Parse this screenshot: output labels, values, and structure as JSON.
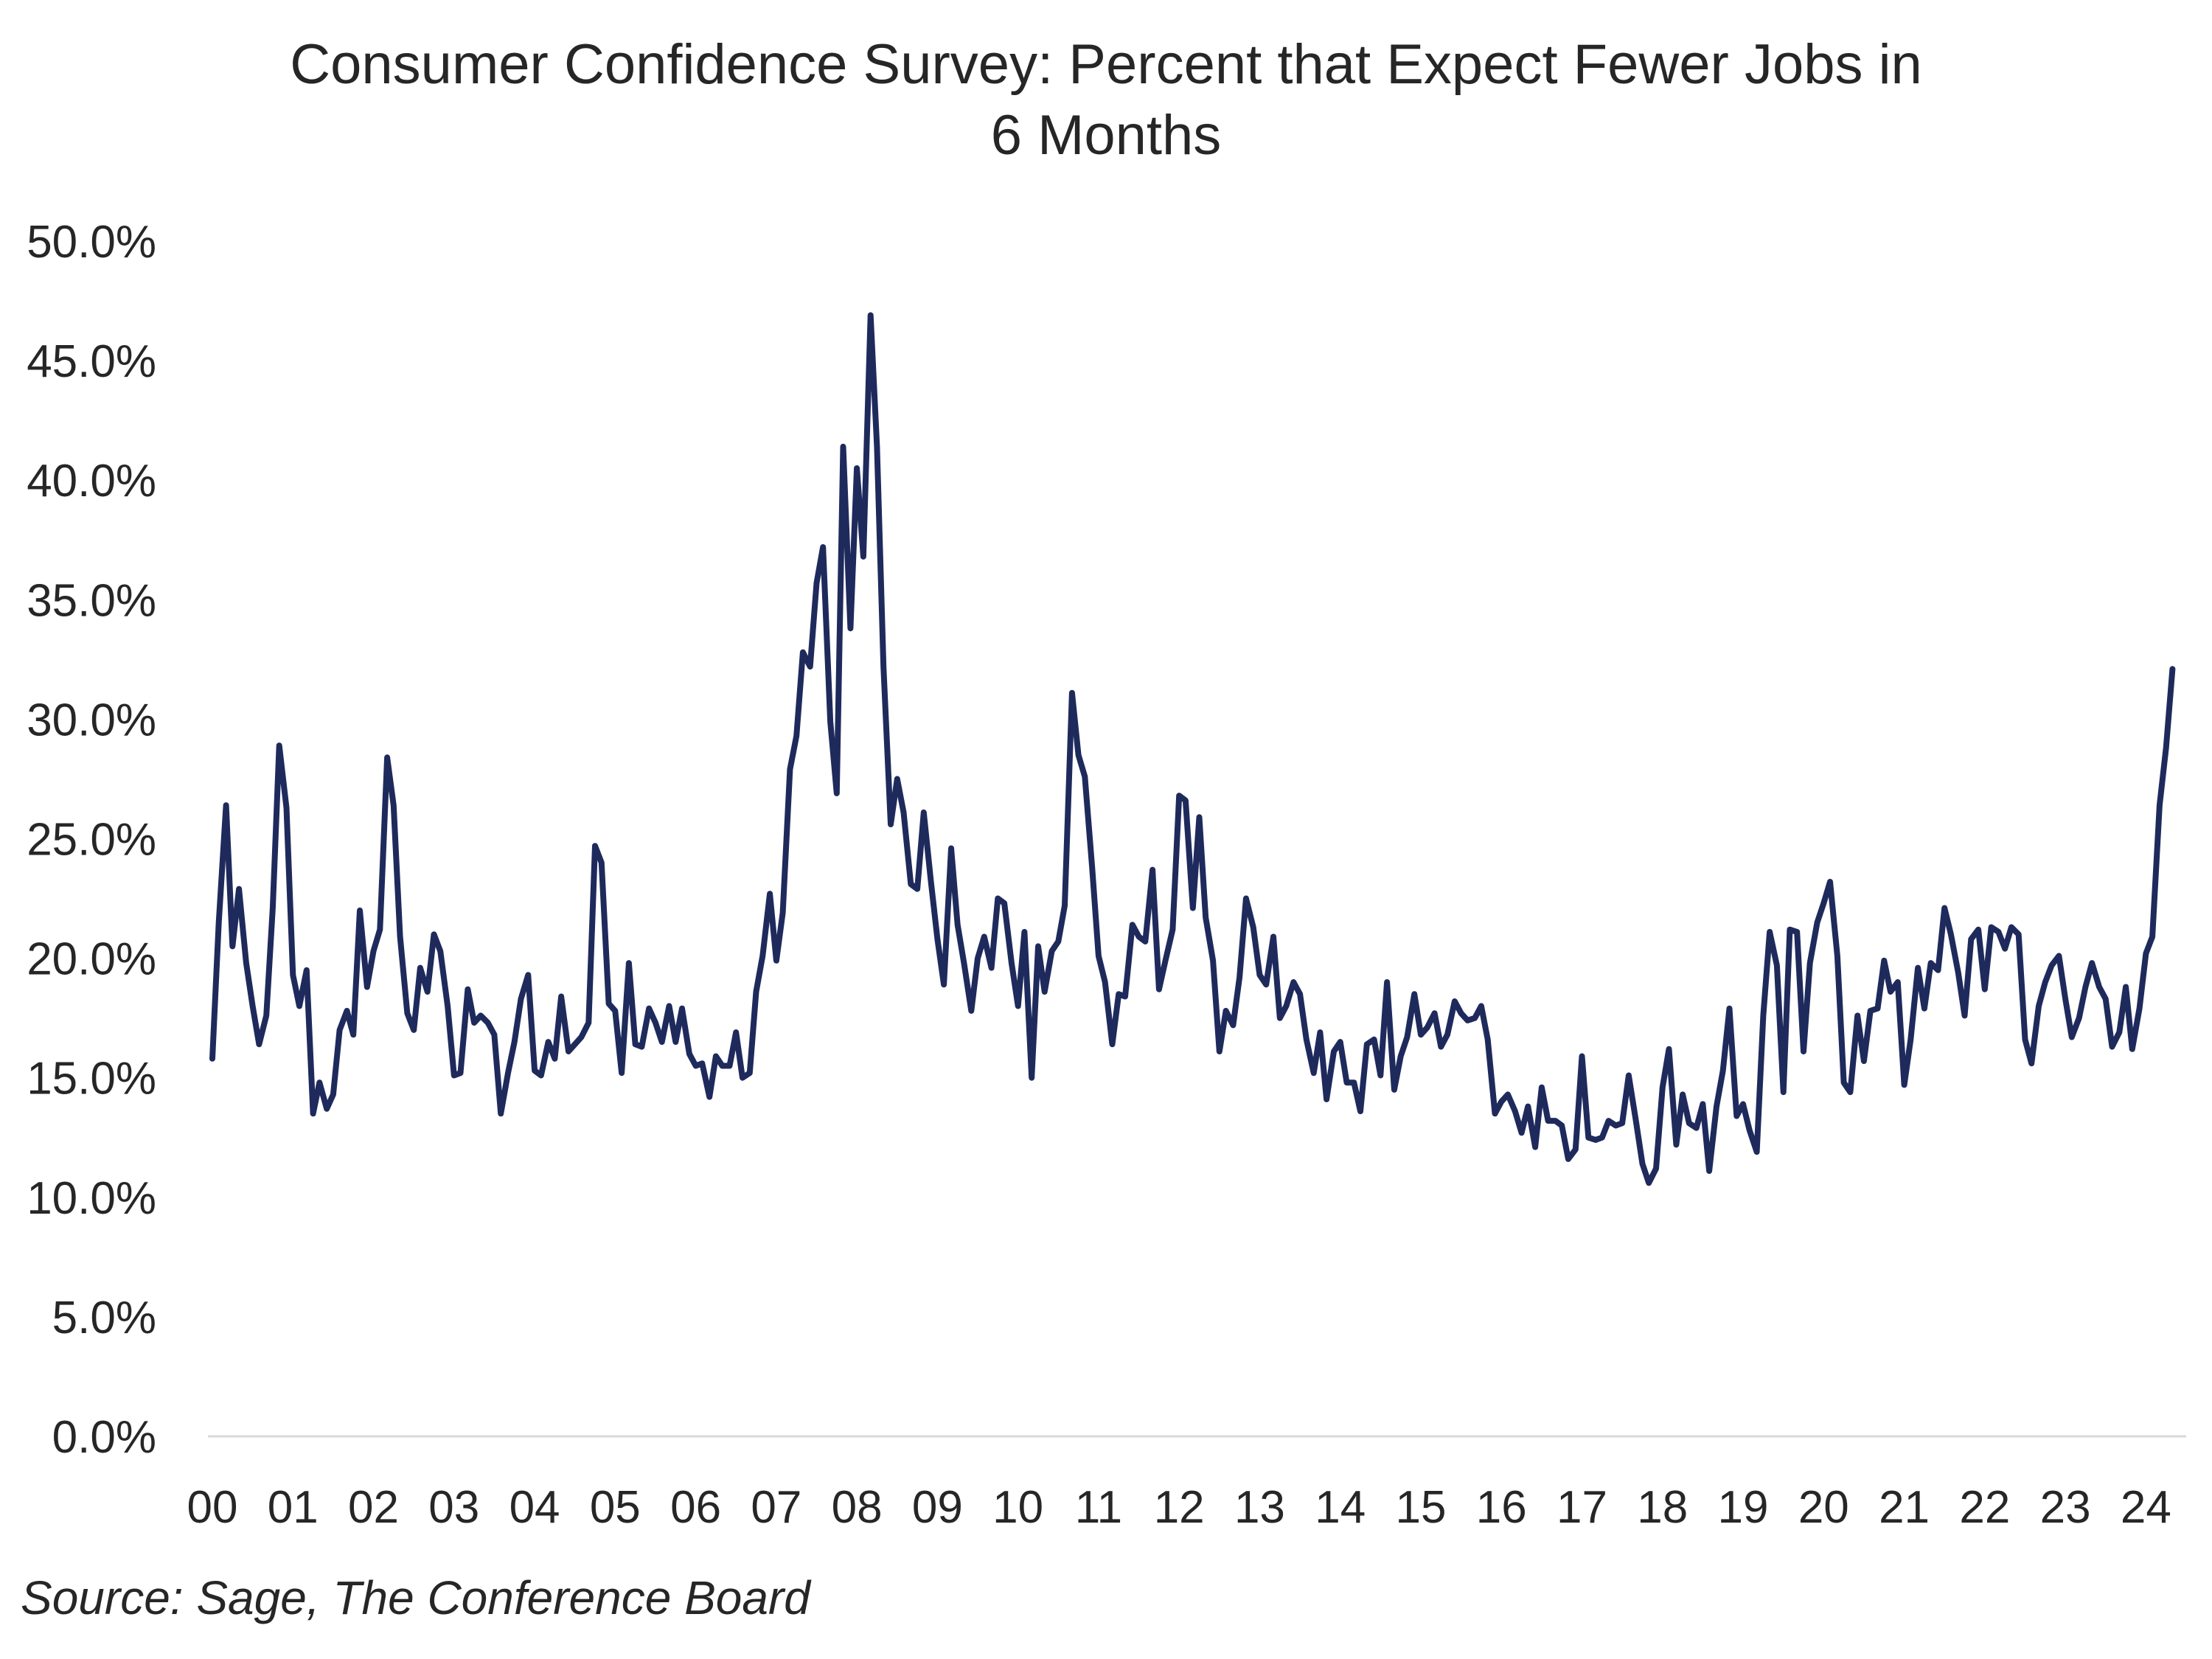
{
  "chart_data": {
    "type": "line",
    "title": "Consumer Confidence Survey: Percent that Expect Fewer Jobs in 6 Months",
    "title_lines": [
      "Consumer Confidence Survey: Percent that Expect Fewer Jobs in",
      "6 Months"
    ],
    "xlabel": "",
    "ylabel": "",
    "ylim": [
      0,
      50
    ],
    "xlim": [
      2000.0,
      2024.5
    ],
    "y_ticks": [
      0,
      5,
      10,
      15,
      20,
      25,
      30,
      35,
      40,
      45,
      50
    ],
    "y_tick_labels": [
      "0.0%",
      "5.0%",
      "10.0%",
      "15.0%",
      "20.0%",
      "25.0%",
      "30.0%",
      "35.0%",
      "40.0%",
      "45.0%",
      "50.0%"
    ],
    "x_ticks": [
      2000,
      2001,
      2002,
      2003,
      2004,
      2005,
      2006,
      2007,
      2008,
      2009,
      2010,
      2011,
      2012,
      2013,
      2014,
      2015,
      2016,
      2017,
      2018,
      2019,
      2020,
      2021,
      2022,
      2023,
      2024
    ],
    "x_tick_labels": [
      "00",
      "01",
      "02",
      "03",
      "04",
      "05",
      "06",
      "07",
      "08",
      "09",
      "10",
      "11",
      "12",
      "13",
      "14",
      "15",
      "16",
      "17",
      "18",
      "19",
      "20",
      "21",
      "22",
      "23",
      "24"
    ],
    "grid": false,
    "legend": "none",
    "line_color": "#1f2a5c",
    "series": [
      {
        "x": [
          2000.0,
          2000.08,
          2000.17,
          2000.25,
          2000.33,
          2000.42,
          2000.5,
          2000.58,
          2000.67,
          2000.75,
          2000.83,
          2000.92,
          2001.0,
          2001.08,
          2001.17,
          2001.25,
          2001.33,
          2001.42,
          2001.5,
          2001.58,
          2001.67,
          2001.75,
          2001.83,
          2001.92,
          2002.0,
          2002.08,
          2002.17,
          2002.25,
          2002.33,
          2002.42,
          2002.5,
          2002.58,
          2002.67,
          2002.75,
          2002.83,
          2002.92,
          2003.0,
          2003.08,
          2003.17,
          2003.25,
          2003.33,
          2003.42,
          2003.5,
          2003.58,
          2003.67,
          2003.75,
          2003.83,
          2003.92,
          2004.0,
          2004.08,
          2004.17,
          2004.25,
          2004.33,
          2004.42,
          2004.5,
          2004.58,
          2004.67,
          2004.75,
          2004.83,
          2004.92,
          2005.0,
          2005.08,
          2005.17,
          2005.25,
          2005.33,
          2005.42,
          2005.5,
          2005.58,
          2005.67,
          2005.75,
          2005.83,
          2005.92,
          2006.0,
          2006.08,
          2006.17,
          2006.25,
          2006.33,
          2006.42,
          2006.5,
          2006.58,
          2006.67,
          2006.75,
          2006.83,
          2006.92,
          2007.0,
          2007.08,
          2007.17,
          2007.25,
          2007.33,
          2007.42,
          2007.5,
          2007.58,
          2007.67,
          2007.75,
          2007.83,
          2007.92,
          2008.0,
          2008.08,
          2008.17,
          2008.25,
          2008.33,
          2008.42,
          2008.5,
          2008.58,
          2008.67,
          2008.75,
          2008.83,
          2008.92,
          2009.0,
          2009.08,
          2009.17,
          2009.25,
          2009.33,
          2009.42,
          2009.5,
          2009.58,
          2009.67,
          2009.75,
          2009.83,
          2009.92,
          2010.0,
          2010.08,
          2010.17,
          2010.25,
          2010.33,
          2010.42,
          2010.5,
          2010.58,
          2010.67,
          2010.75,
          2010.83,
          2010.92,
          2011.0,
          2011.08,
          2011.17,
          2011.25,
          2011.33,
          2011.42,
          2011.5,
          2011.58,
          2011.67,
          2011.75,
          2011.83,
          2011.92,
          2012.0,
          2012.08,
          2012.17,
          2012.25,
          2012.33,
          2012.42,
          2012.5,
          2012.58,
          2012.67,
          2012.75,
          2012.83,
          2012.92,
          2013.0,
          2013.08,
          2013.17,
          2013.25,
          2013.33,
          2013.42,
          2013.5,
          2013.58,
          2013.67,
          2013.75,
          2013.83,
          2013.92,
          2014.0,
          2014.08,
          2014.17,
          2014.25,
          2014.33,
          2014.42,
          2014.5,
          2014.58,
          2014.67,
          2014.75,
          2014.83,
          2014.92,
          2015.0,
          2015.08,
          2015.17,
          2015.25,
          2015.33,
          2015.42,
          2015.5,
          2015.58,
          2015.67,
          2015.75,
          2015.83,
          2015.92,
          2016.0,
          2016.08,
          2016.17,
          2016.25,
          2016.33,
          2016.42,
          2016.5,
          2016.58,
          2016.67,
          2016.75,
          2016.83,
          2016.92,
          2017.0,
          2017.08,
          2017.17,
          2017.25,
          2017.33,
          2017.42,
          2017.5,
          2017.58,
          2017.67,
          2017.75,
          2017.83,
          2017.92,
          2018.0,
          2018.08,
          2018.17,
          2018.25,
          2018.33,
          2018.42,
          2018.5,
          2018.58,
          2018.67,
          2018.75,
          2018.83,
          2018.92,
          2019.0,
          2019.08,
          2019.17,
          2019.25,
          2019.33,
          2019.42,
          2019.5,
          2019.58,
          2019.67,
          2019.75,
          2019.83,
          2019.92,
          2020.0,
          2020.08,
          2020.17,
          2020.25,
          2020.33,
          2020.42,
          2020.5,
          2020.58,
          2020.67,
          2020.75,
          2020.83,
          2020.92,
          2021.0,
          2021.08,
          2021.17,
          2021.25,
          2021.33,
          2021.42,
          2021.5,
          2021.58,
          2021.67,
          2021.75,
          2021.83,
          2021.92,
          2022.0,
          2022.08,
          2022.17,
          2022.25,
          2022.33,
          2022.42,
          2022.5,
          2022.58,
          2022.67,
          2022.75,
          2022.83,
          2022.92,
          2023.0,
          2023.08,
          2023.17,
          2023.25,
          2023.33,
          2023.42,
          2023.5,
          2023.58,
          2023.67,
          2023.75,
          2023.83,
          2023.92,
          2024.0,
          2024.08,
          2024.17,
          2024.25,
          2024.33
        ],
        "values": [
          15.8,
          21.5,
          26.4,
          20.5,
          22.9,
          19.8,
          18.0,
          16.4,
          17.6,
          22.1,
          28.9,
          26.3,
          19.3,
          18.0,
          19.5,
          13.5,
          14.8,
          13.7,
          14.3,
          17.0,
          17.8,
          16.8,
          22.0,
          18.8,
          20.3,
          21.2,
          28.4,
          26.4,
          20.9,
          17.7,
          17.0,
          19.6,
          18.6,
          21.0,
          20.3,
          18.0,
          15.1,
          15.2,
          18.7,
          17.3,
          17.6,
          17.3,
          16.8,
          13.5,
          15.2,
          16.5,
          18.3,
          19.3,
          15.3,
          15.1,
          16.5,
          15.8,
          18.4,
          16.1,
          16.4,
          16.7,
          17.3,
          24.7,
          24.0,
          18.1,
          17.8,
          15.2,
          19.8,
          16.4,
          16.3,
          17.9,
          17.3,
          16.5,
          18.0,
          16.5,
          17.9,
          16.0,
          15.5,
          15.6,
          14.2,
          15.9,
          15.5,
          15.5,
          16.9,
          15.0,
          15.2,
          18.6,
          20.1,
          22.7,
          19.9,
          21.9,
          27.9,
          29.3,
          32.8,
          32.2,
          35.7,
          37.2,
          29.9,
          26.9,
          41.4,
          33.8,
          40.5,
          36.8,
          46.9,
          41.4,
          32.2,
          25.6,
          27.5,
          26.1,
          23.1,
          22.9,
          26.1,
          23.2,
          20.8,
          18.9,
          24.6,
          21.4,
          19.8,
          17.8,
          20.0,
          20.9,
          19.6,
          22.5,
          22.3,
          19.8,
          18.0,
          21.1,
          15.0,
          20.5,
          18.6,
          20.3,
          20.7,
          22.2,
          31.1,
          28.5,
          27.6,
          23.8,
          20.1,
          19.0,
          16.4,
          18.5,
          18.4,
          21.4,
          20.9,
          20.7,
          23.7,
          18.7,
          19.9,
          21.2,
          26.8,
          26.6,
          22.1,
          25.9,
          21.7,
          19.9,
          16.1,
          17.8,
          17.2,
          19.2,
          22.5,
          21.3,
          19.3,
          18.9,
          20.9,
          17.5,
          18.0,
          19.0,
          18.5,
          16.6,
          15.2,
          16.9,
          14.1,
          16.1,
          16.5,
          14.8,
          14.8,
          13.6,
          16.4,
          16.6,
          15.1,
          19.0,
          14.5,
          15.9,
          16.7,
          18.5,
          16.8,
          17.1,
          17.7,
          16.3,
          16.8,
          18.2,
          17.7,
          17.4,
          17.5,
          18.0,
          16.6,
          13.5,
          14.0,
          14.3,
          13.6,
          12.7,
          13.8,
          12.1,
          14.6,
          13.2,
          13.2,
          13.0,
          11.6,
          12.0,
          15.9,
          12.5,
          12.4,
          12.5,
          13.2,
          13.0,
          13.1,
          15.1,
          13.2,
          11.4,
          10.6,
          11.2,
          14.6,
          16.2,
          12.2,
          14.3,
          13.1,
          12.9,
          13.9,
          11.1,
          13.8,
          15.3,
          17.9,
          13.4,
          13.9,
          12.8,
          11.9,
          17.6,
          21.1,
          19.7,
          14.4,
          21.2,
          21.1,
          16.1,
          19.8,
          21.5,
          22.3,
          23.2,
          20.1,
          14.8,
          14.4,
          17.6,
          15.7,
          17.8,
          17.9,
          19.9,
          18.6,
          19.0,
          14.7,
          16.6,
          19.6,
          17.9,
          19.8,
          19.5,
          22.1,
          21.0,
          19.4,
          17.6,
          20.8,
          21.2,
          18.7,
          21.3,
          21.1,
          20.4,
          21.3,
          21.0,
          16.6,
          15.6,
          18.0,
          19.0,
          19.7,
          20.1,
          18.3,
          16.7,
          17.5,
          18.8,
          19.8,
          18.8,
          18.3,
          16.3,
          16.9,
          18.8,
          16.2,
          17.9,
          20.2,
          20.9,
          26.4,
          28.8,
          32.1
        ]
      }
    ],
    "source": "Source: Sage, The Conference Board"
  }
}
